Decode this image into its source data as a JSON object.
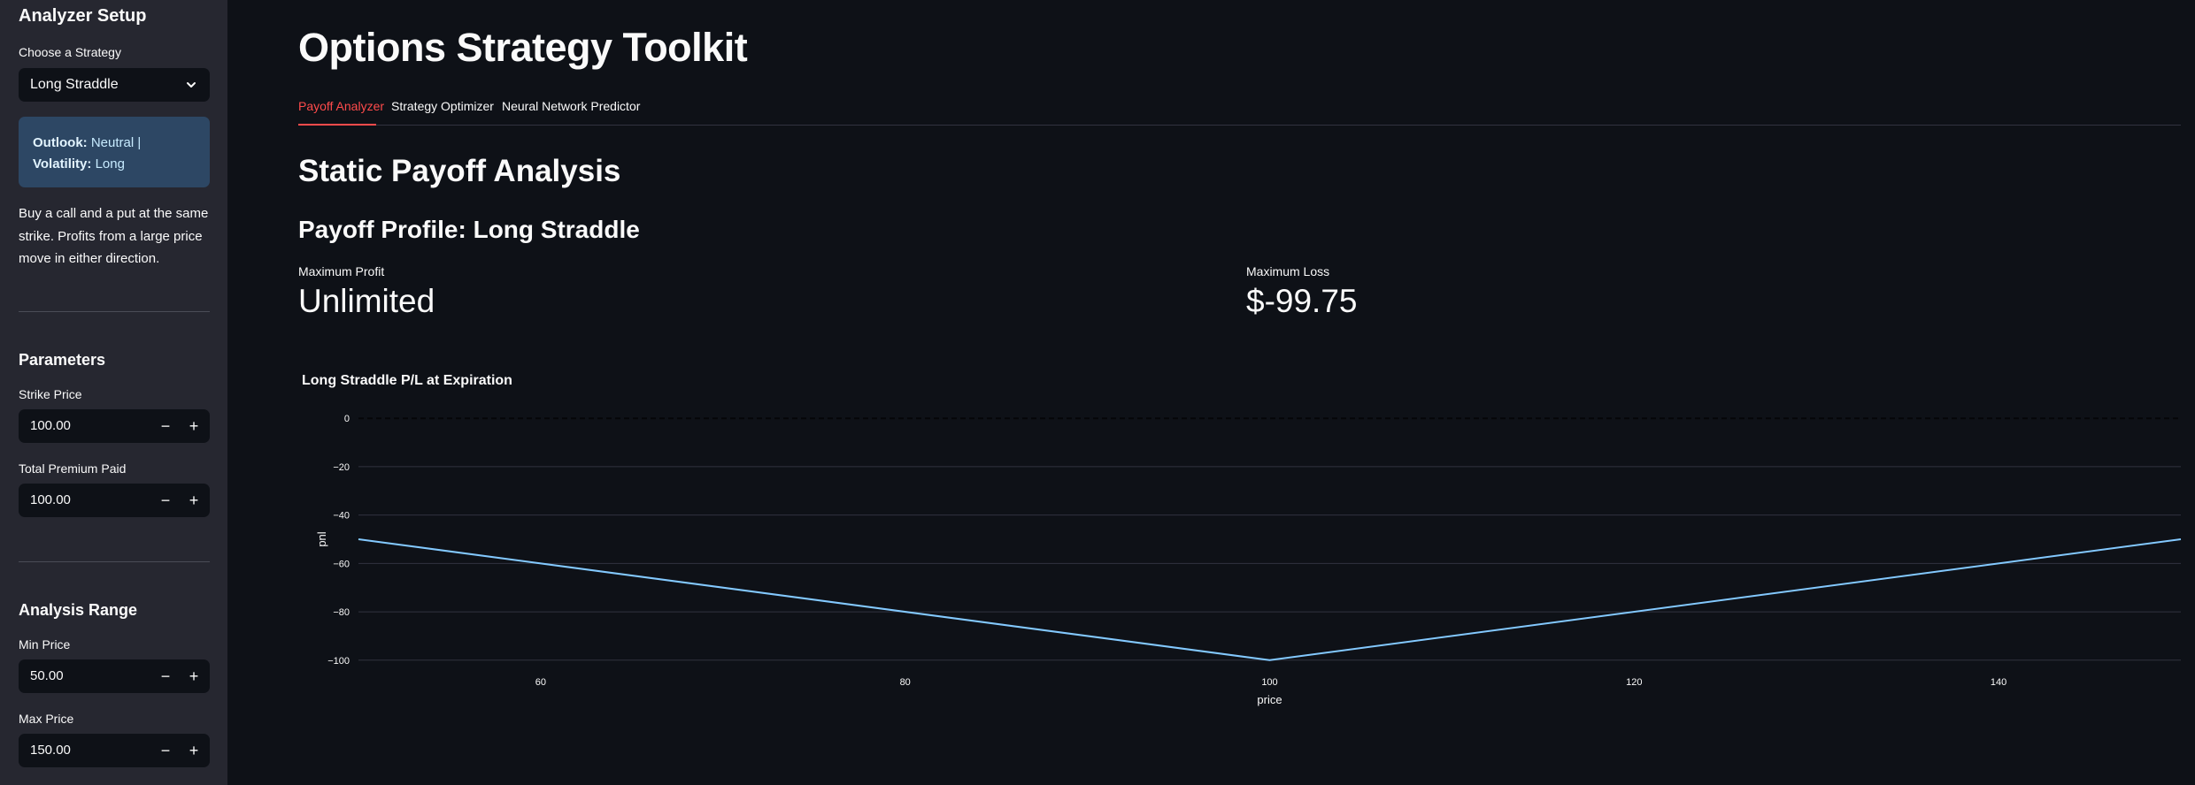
{
  "sidebar": {
    "heading": "Analyzer Setup",
    "strategy_label": "Choose a Strategy",
    "strategy_selected": "Long Straddle",
    "info": {
      "outlook_label": "Outlook:",
      "outlook_value": "Neutral |",
      "volatility_label": "Volatility:",
      "volatility_value": "Long"
    },
    "description": "Buy a call and a put at the same strike. Profits from a large price move in either direction.",
    "parameters": {
      "heading": "Parameters",
      "strike_label": "Strike Price",
      "strike_value": "100.00",
      "premium_label": "Total Premium Paid",
      "premium_value": "100.00"
    },
    "analysis_range": {
      "heading": "Analysis Range",
      "min_label": "Min Price",
      "min_value": "50.00",
      "max_label": "Max Price",
      "max_value": "150.00"
    },
    "minus_glyph": "−",
    "plus_glyph": "+"
  },
  "main": {
    "title": "Options Strategy Toolkit",
    "tabs": [
      {
        "label": "Payoff Analyzer",
        "active": true
      },
      {
        "label": "Strategy Optimizer",
        "active": false
      },
      {
        "label": "Neural Network Predictor",
        "active": false
      }
    ],
    "section_title": "Static Payoff Analysis",
    "profile_title": "Payoff Profile: Long Straddle",
    "metrics": [
      {
        "label": "Maximum Profit",
        "value": "Unlimited"
      },
      {
        "label": "Maximum Loss",
        "value": "$-99.75"
      }
    ]
  },
  "chart_data": {
    "type": "line",
    "title": "Long Straddle P/L at Expiration",
    "xlabel": "price",
    "ylabel": "pnl",
    "xlim": [
      50,
      150
    ],
    "ylim": [
      -103,
      3
    ],
    "xticks": [
      60,
      80,
      100,
      120,
      140
    ],
    "yticks": [
      0,
      -20,
      -40,
      -60,
      -80,
      -100
    ],
    "zero_line": "dashed",
    "grid": true,
    "series": [
      {
        "x": [
          50,
          100,
          150
        ],
        "y": [
          -50,
          -100,
          -50
        ],
        "color": "#83c9ff"
      }
    ]
  },
  "colors": {
    "background": "#0e1117",
    "sidebar": "#262730",
    "accent": "#ff4b4b",
    "info_box": "#2d4764",
    "line": "#83c9ff"
  }
}
